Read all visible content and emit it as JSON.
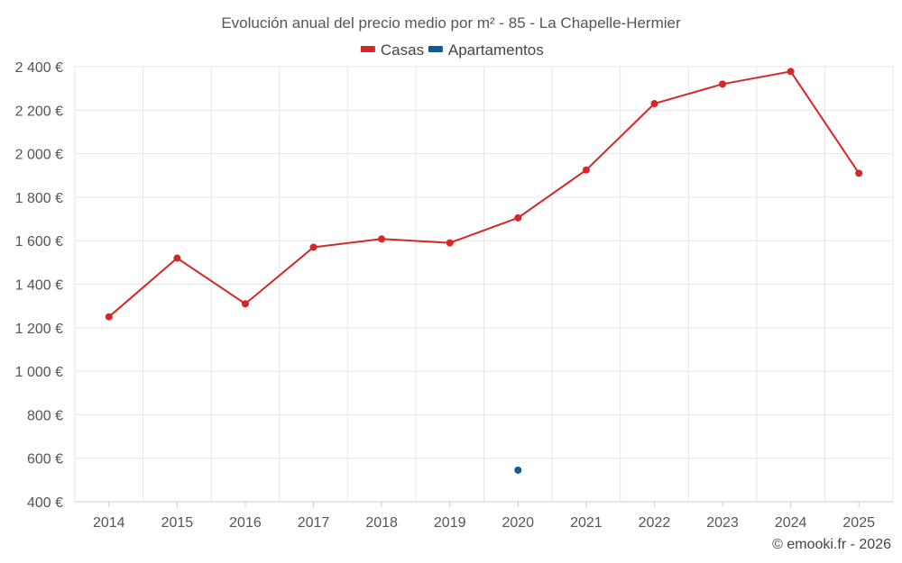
{
  "chart_data": {
    "type": "line",
    "title": "Evolución anual del precio medio por m² - 85 - La Chapelle-Hermier",
    "categories": [
      "2014",
      "2015",
      "2016",
      "2017",
      "2018",
      "2019",
      "2020",
      "2021",
      "2022",
      "2023",
      "2024",
      "2025"
    ],
    "series": [
      {
        "name": "Casas",
        "color": "#d62728",
        "values": [
          1250,
          1520,
          1310,
          1570,
          1608,
          1590,
          1705,
          1925,
          2230,
          2320,
          2378,
          1910
        ]
      },
      {
        "name": "Apartamentos",
        "color": "#0b5d99",
        "values": [
          null,
          null,
          null,
          null,
          null,
          null,
          545,
          null,
          null,
          null,
          null,
          null
        ]
      }
    ],
    "ylim": [
      400,
      2400
    ],
    "yticks": [
      400,
      600,
      800,
      1000,
      1200,
      1400,
      1600,
      1800,
      2000,
      2200,
      2400
    ],
    "ytick_labels": [
      "400 €",
      "600 €",
      "800 €",
      "1 000 €",
      "1 200 €",
      "1 400 €",
      "1 600 €",
      "1 800 €",
      "2 000 €",
      "2 200 €",
      "2 400 €"
    ],
    "grid": true,
    "legend_position": "top-center",
    "xlabel": "",
    "ylabel": ""
  },
  "credit": "© emooki.fr - 2026"
}
